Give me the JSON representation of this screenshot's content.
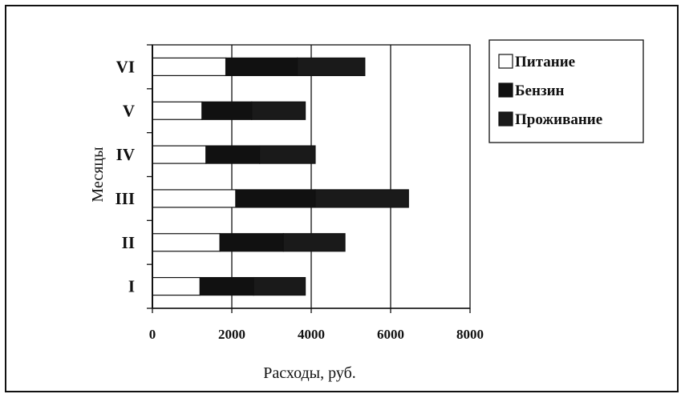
{
  "chart_data": {
    "type": "bar",
    "orientation": "horizontal",
    "stacked": true,
    "xlabel": "Расходы,  руб.",
    "ylabel": "Месяцы",
    "xlim": [
      0,
      8000
    ],
    "x_ticks": [
      "0",
      "2000",
      "4000",
      "6000",
      "8000"
    ],
    "x_tick_values": [
      0,
      2000,
      4000,
      6000,
      8000
    ],
    "categories": [
      "I",
      "II",
      "III",
      "IV",
      "V",
      "VI"
    ],
    "series": [
      {
        "name": "Питание",
        "values": [
          1200,
          1700,
          2100,
          1350,
          1250,
          1850
        ],
        "color": "#ffffff"
      },
      {
        "name": "Бензин",
        "values": [
          1350,
          1600,
          2000,
          1350,
          1250,
          1800
        ],
        "color": "#111111"
      },
      {
        "name": "Проживание",
        "values": [
          1300,
          1550,
          2350,
          1400,
          1350,
          1700
        ],
        "color": "#1a1a1a"
      }
    ],
    "grid": {
      "vertical": true,
      "horizontal": false
    },
    "legend_position": "top-right"
  }
}
